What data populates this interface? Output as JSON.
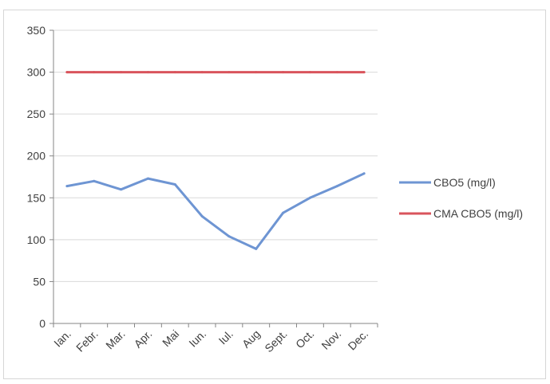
{
  "chart_data": {
    "type": "line",
    "categories": [
      "Ian.",
      "Febr.",
      "Mar.",
      "Apr.",
      "Mai",
      "Iun.",
      "Iul.",
      "Aug",
      "Sept.",
      "Oct.",
      "Nov.",
      "Dec."
    ],
    "series": [
      {
        "name": "CBO5 (mg/l)",
        "color": "#6e95d3",
        "values": [
          164,
          170,
          160,
          173,
          166,
          128,
          104,
          89,
          132,
          150,
          164,
          179
        ]
      },
      {
        "name": "CMA CBO5 (mg/l)",
        "color": "#d9545c",
        "values": [
          300,
          300,
          300,
          300,
          300,
          300,
          300,
          300,
          300,
          300,
          300,
          300
        ]
      }
    ],
    "yticks": [
      0,
      50,
      100,
      150,
      200,
      250,
      300,
      350
    ],
    "ylim": [
      0,
      350
    ],
    "grid": true,
    "legend_position": "right",
    "title": "",
    "xlabel": "",
    "ylabel": ""
  }
}
